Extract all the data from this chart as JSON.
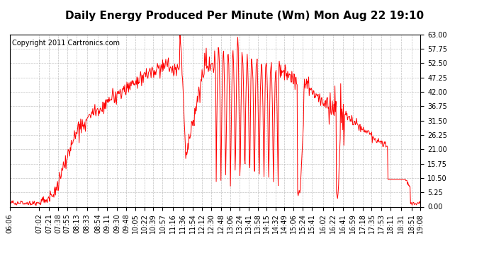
{
  "title": "Daily Energy Produced Per Minute (Wm) Mon Aug 22 19:10",
  "copyright": "Copyright 2011 Cartronics.com",
  "line_color": "#ff0000",
  "background_color": "#ffffff",
  "plot_bg_color": "#ffffff",
  "grid_color": "#bbbbbb",
  "y_min": 0.0,
  "y_max": 63.0,
  "y_ticks": [
    0.0,
    5.25,
    10.5,
    15.75,
    21.0,
    26.25,
    31.5,
    36.75,
    42.0,
    47.25,
    52.5,
    57.75,
    63.0
  ],
  "x_labels": [
    "06:06",
    "07:02",
    "07:21",
    "07:38",
    "07:55",
    "08:13",
    "08:33",
    "08:54",
    "09:11",
    "09:30",
    "09:48",
    "10:05",
    "10:22",
    "10:39",
    "10:57",
    "11:16",
    "11:36",
    "11:54",
    "12:12",
    "12:30",
    "12:48",
    "13:06",
    "13:24",
    "13:41",
    "13:58",
    "14:15",
    "14:32",
    "14:49",
    "15:06",
    "15:24",
    "15:41",
    "16:02",
    "16:22",
    "16:41",
    "16:59",
    "17:18",
    "17:35",
    "17:53",
    "18:11",
    "18:31",
    "18:51",
    "19:08"
  ],
  "title_fontsize": 11,
  "tick_fontsize": 7,
  "copyright_fontsize": 7
}
